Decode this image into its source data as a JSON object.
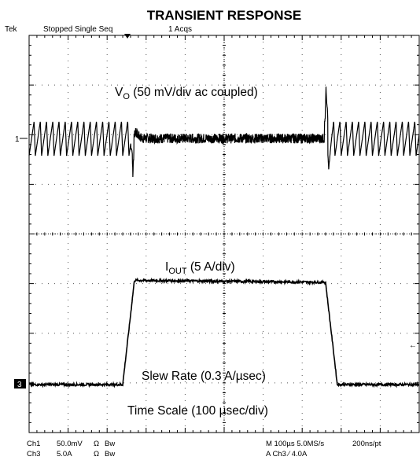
{
  "chart_data": {
    "type": "line",
    "title": "TRANSIENT RESPONSE",
    "scope_header": {
      "brand": "Tek",
      "status": "Stopped Single Seq",
      "acqs": "1 Acqs"
    },
    "annotations": {
      "vo_main": "V",
      "vo_sub": "O",
      "vo_rest": " (50 mV/div ac coupled)",
      "iout_main": "I",
      "iout_sub": "OUT",
      "iout_rest": " (5 A/div)",
      "slew_rate": "Slew Rate (0.3 A/µsec)",
      "time_scale": "Time Scale (100 µsec/div)"
    },
    "channel_markers": {
      "ch1": "1",
      "ch3": "3"
    },
    "footer": {
      "ch1_name": "Ch1",
      "ch1_scale": "50.0mV",
      "ch1_imp": "Ω",
      "ch1_bw": "Bw",
      "ch3_name": "Ch3",
      "ch3_scale": "5.0A",
      "ch3_imp": "Ω",
      "ch3_bw": "Bw",
      "timebase": "M 100µs 5.0MS/s",
      "record": "200ns/pt",
      "trigger": "A Ch3 ⁄ 4.0A"
    },
    "grid": {
      "x_divisions": 10,
      "y_divisions": 8,
      "x_unit": "µs",
      "x_per_div": 100
    },
    "x_range_us": [
      0,
      1000
    ],
    "series": [
      {
        "channel": "Ch1",
        "unit": "mV",
        "scale_per_div": 50,
        "color": "#000000",
        "ripple_pp_mV": 35,
        "ripple_period_us": 16,
        "load_step_up_us": 265,
        "load_step_down_us": 760,
        "undershoot_mV": -35,
        "overshoot_mV": 45
      },
      {
        "channel": "Ch3",
        "unit": "A",
        "scale_per_div": 5,
        "color": "#000000",
        "points": [
          [
            0,
            0
          ],
          [
            240,
            0
          ],
          [
            270,
            10.5
          ],
          [
            760,
            10.3
          ],
          [
            790,
            0
          ],
          [
            1000,
            0
          ]
        ]
      }
    ]
  }
}
